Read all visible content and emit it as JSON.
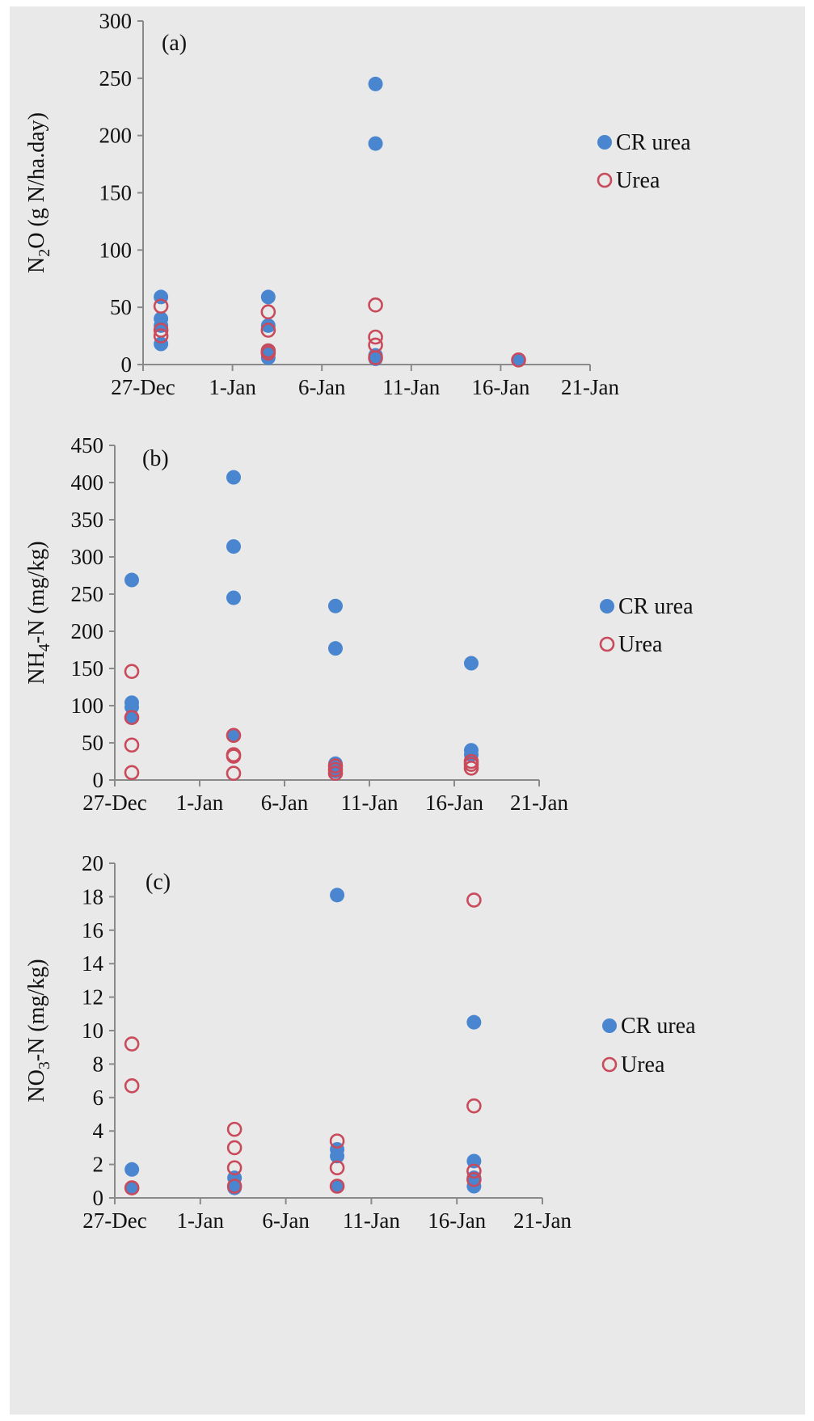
{
  "chart_data": [
    {
      "type": "scatter",
      "panel_label": "(a)",
      "ylabel_main": "N",
      "ylabel_sub": "2",
      "ylabel_rest": "O (g N/ha.day)",
      "ylim": [
        0,
        300
      ],
      "yticks": [
        "0",
        "50",
        "100",
        "150",
        "200",
        "250",
        "300"
      ],
      "xlim": [
        "27-Dec",
        "21-Jan"
      ],
      "xticks": [
        "27-Dec",
        "1-Jan",
        "6-Jan",
        "11-Jan",
        "16-Jan",
        "21-Jan"
      ],
      "grid": false,
      "legend_position": "right",
      "series": [
        {
          "name": "CR urea",
          "marker": "filled-circle",
          "color": "#4a86d0",
          "points": [
            {
              "x": "2016-12-28",
              "y": 59
            },
            {
              "x": "2016-12-28",
              "y": 40
            },
            {
              "x": "2016-12-28",
              "y": 34
            },
            {
              "x": "2016-12-28",
              "y": 18
            },
            {
              "x": "2017-01-03",
              "y": 59
            },
            {
              "x": "2017-01-03",
              "y": 34
            },
            {
              "x": "2017-01-03",
              "y": 12
            },
            {
              "x": "2017-01-03",
              "y": 6
            },
            {
              "x": "2017-01-09",
              "y": 245
            },
            {
              "x": "2017-01-09",
              "y": 193
            },
            {
              "x": "2017-01-09",
              "y": 8
            },
            {
              "x": "2017-01-09",
              "y": 5
            },
            {
              "x": "2017-01-17",
              "y": 4
            }
          ]
        },
        {
          "name": "Urea",
          "marker": "open-circle",
          "color": "#c94a5a",
          "points": [
            {
              "x": "2016-12-28",
              "y": 51
            },
            {
              "x": "2016-12-28",
              "y": 30
            },
            {
              "x": "2016-12-28",
              "y": 25
            },
            {
              "x": "2017-01-03",
              "y": 46
            },
            {
              "x": "2017-01-03",
              "y": 30
            },
            {
              "x": "2017-01-03",
              "y": 12
            },
            {
              "x": "2017-01-03",
              "y": 10
            },
            {
              "x": "2017-01-09",
              "y": 52
            },
            {
              "x": "2017-01-09",
              "y": 24
            },
            {
              "x": "2017-01-09",
              "y": 17
            },
            {
              "x": "2017-01-09",
              "y": 6
            },
            {
              "x": "2017-01-17",
              "y": 4
            }
          ]
        }
      ]
    },
    {
      "type": "scatter",
      "panel_label": "(b)",
      "ylabel_main": "NH",
      "ylabel_sub": "4",
      "ylabel_rest": "-N (mg/kg)",
      "ylim": [
        0,
        450
      ],
      "yticks": [
        "0",
        "50",
        "100",
        "150",
        "200",
        "250",
        "300",
        "350",
        "400",
        "450"
      ],
      "xlim": [
        "27-Dec",
        "21-Jan"
      ],
      "xticks": [
        "27-Dec",
        "1-Jan",
        "6-Jan",
        "11-Jan",
        "16-Jan",
        "21-Jan"
      ],
      "grid": false,
      "legend_position": "right",
      "series": [
        {
          "name": "CR urea",
          "marker": "filled-circle",
          "color": "#4a86d0",
          "points": [
            {
              "x": "2016-12-28",
              "y": 269
            },
            {
              "x": "2016-12-28",
              "y": 104
            },
            {
              "x": "2016-12-28",
              "y": 98
            },
            {
              "x": "2016-12-28",
              "y": 84
            },
            {
              "x": "2017-01-03",
              "y": 407
            },
            {
              "x": "2017-01-03",
              "y": 314
            },
            {
              "x": "2017-01-03",
              "y": 245
            },
            {
              "x": "2017-01-03",
              "y": 60
            },
            {
              "x": "2017-01-09",
              "y": 234
            },
            {
              "x": "2017-01-09",
              "y": 177
            },
            {
              "x": "2017-01-09",
              "y": 22
            },
            {
              "x": "2017-01-09",
              "y": 12
            },
            {
              "x": "2017-01-17",
              "y": 157
            },
            {
              "x": "2017-01-17",
              "y": 40
            },
            {
              "x": "2017-01-17",
              "y": 34
            }
          ]
        },
        {
          "name": "Urea",
          "marker": "open-circle",
          "color": "#c94a5a",
          "points": [
            {
              "x": "2016-12-28",
              "y": 146
            },
            {
              "x": "2016-12-28",
              "y": 84
            },
            {
              "x": "2016-12-28",
              "y": 47
            },
            {
              "x": "2016-12-28",
              "y": 10
            },
            {
              "x": "2017-01-03",
              "y": 60
            },
            {
              "x": "2017-01-03",
              "y": 34
            },
            {
              "x": "2017-01-03",
              "y": 32
            },
            {
              "x": "2017-01-03",
              "y": 9
            },
            {
              "x": "2017-01-09",
              "y": 19
            },
            {
              "x": "2017-01-09",
              "y": 14
            },
            {
              "x": "2017-01-09",
              "y": 9
            },
            {
              "x": "2017-01-17",
              "y": 25
            },
            {
              "x": "2017-01-17",
              "y": 21
            },
            {
              "x": "2017-01-17",
              "y": 16
            }
          ]
        }
      ]
    },
    {
      "type": "scatter",
      "panel_label": "(c)",
      "ylabel_main": "NO",
      "ylabel_sub": "3",
      "ylabel_rest": "-N (mg/kg)",
      "ylim": [
        0,
        20
      ],
      "yticks": [
        "0",
        "2",
        "4",
        "6",
        "8",
        "10",
        "12",
        "14",
        "16",
        "18",
        "20"
      ],
      "xlim": [
        "27-Dec",
        "21-Jan"
      ],
      "xticks": [
        "27-Dec",
        "1-Jan",
        "6-Jan",
        "11-Jan",
        "16-Jan",
        "21-Jan"
      ],
      "grid": false,
      "legend_position": "right",
      "series": [
        {
          "name": "CR urea",
          "marker": "filled-circle",
          "color": "#4a86d0",
          "points": [
            {
              "x": "2016-12-28",
              "y": 1.7
            },
            {
              "x": "2016-12-28",
              "y": 0.6
            },
            {
              "x": "2017-01-03",
              "y": 1.2
            },
            {
              "x": "2017-01-03",
              "y": 0.6
            },
            {
              "x": "2017-01-09",
              "y": 18.1
            },
            {
              "x": "2017-01-09",
              "y": 2.9
            },
            {
              "x": "2017-01-09",
              "y": 2.5
            },
            {
              "x": "2017-01-09",
              "y": 0.7
            },
            {
              "x": "2017-01-17",
              "y": 10.5
            },
            {
              "x": "2017-01-17",
              "y": 2.2
            },
            {
              "x": "2017-01-17",
              "y": 1.2
            },
            {
              "x": "2017-01-17",
              "y": 0.7
            }
          ]
        },
        {
          "name": "Urea",
          "marker": "open-circle",
          "color": "#c94a5a",
          "points": [
            {
              "x": "2016-12-28",
              "y": 9.2
            },
            {
              "x": "2016-12-28",
              "y": 6.7
            },
            {
              "x": "2016-12-28",
              "y": 0.6
            },
            {
              "x": "2017-01-03",
              "y": 4.1
            },
            {
              "x": "2017-01-03",
              "y": 3.0
            },
            {
              "x": "2017-01-03",
              "y": 1.8
            },
            {
              "x": "2017-01-03",
              "y": 0.7
            },
            {
              "x": "2017-01-09",
              "y": 3.4
            },
            {
              "x": "2017-01-09",
              "y": 1.8
            },
            {
              "x": "2017-01-09",
              "y": 0.7
            },
            {
              "x": "2017-01-17",
              "y": 17.8
            },
            {
              "x": "2017-01-17",
              "y": 5.5
            },
            {
              "x": "2017-01-17",
              "y": 1.6
            },
            {
              "x": "2017-01-17",
              "y": 1.1
            }
          ]
        }
      ]
    }
  ]
}
